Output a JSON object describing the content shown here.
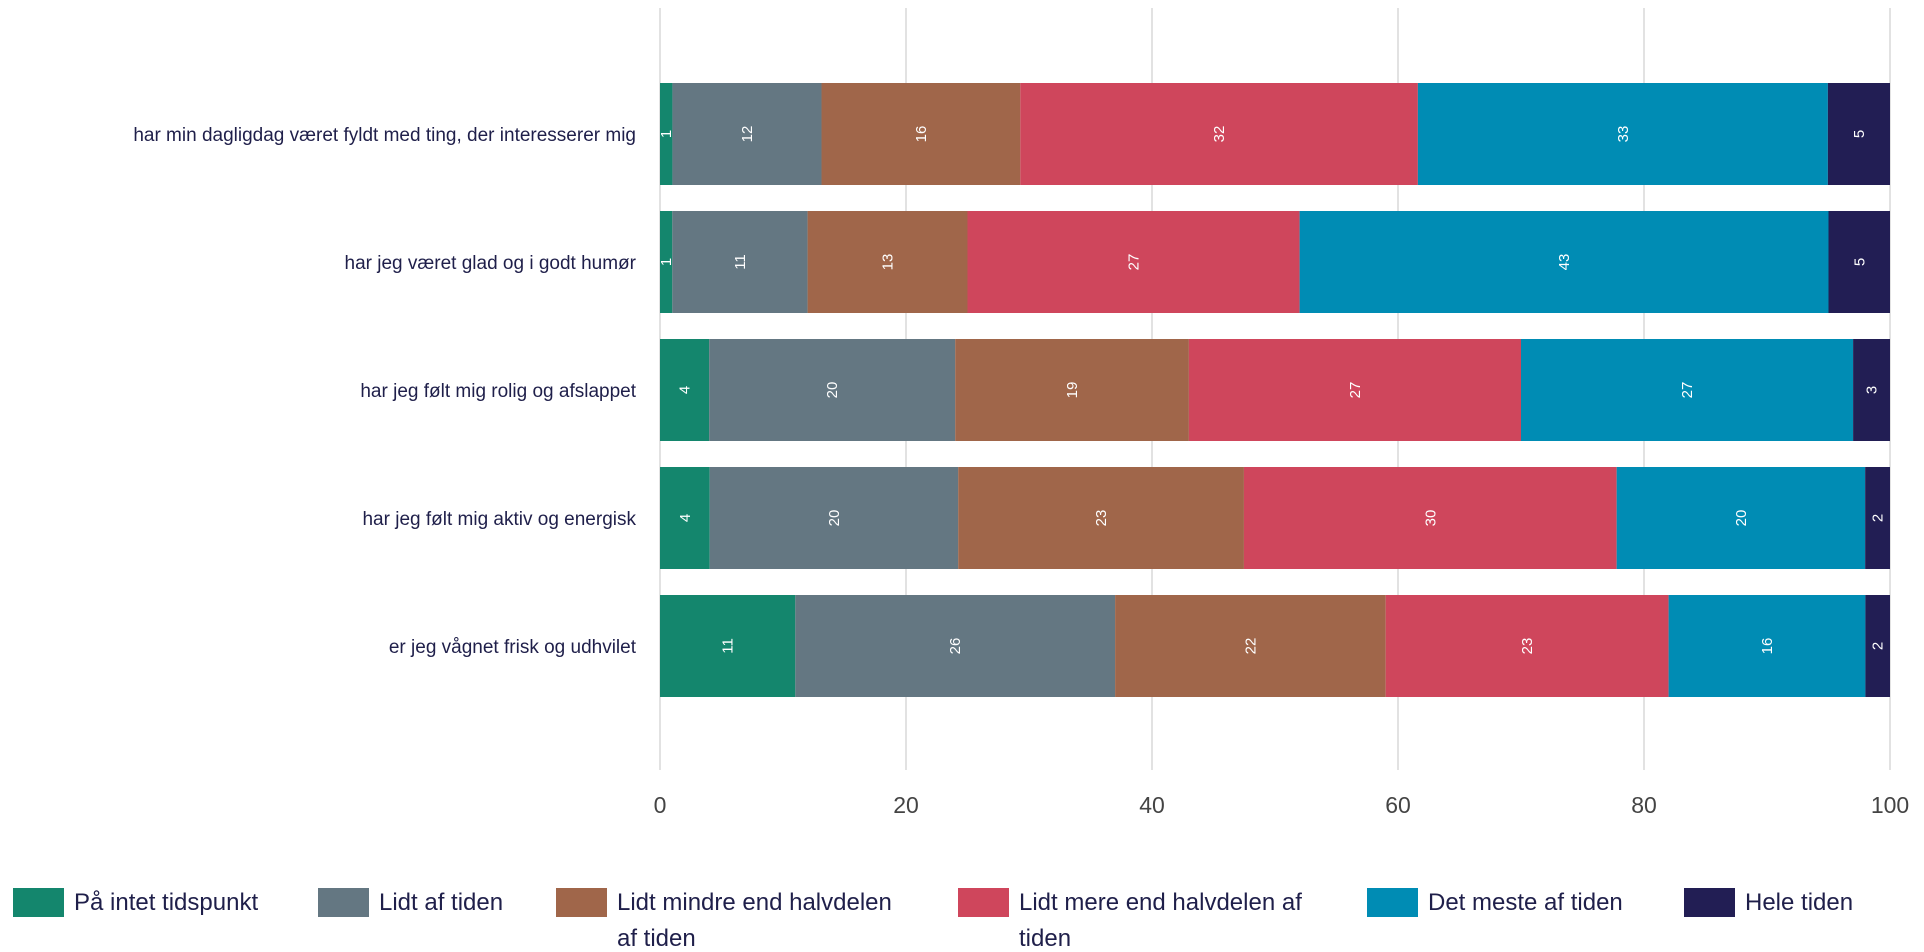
{
  "chart_data": {
    "type": "bar",
    "orientation": "horizontal",
    "stacked": true,
    "categories": [
      "har min dagligdag været fyldt med ting, der interesserer mig",
      "har jeg været glad og i godt humør",
      "har jeg følt mig rolig og afslappet",
      "har jeg følt mig aktiv og energisk",
      "er jeg vågnet frisk og udhvilet"
    ],
    "series": [
      {
        "name": "På intet tidspunkt",
        "color": "#14866d",
        "values": [
          1,
          1,
          4,
          4,
          11
        ]
      },
      {
        "name": "Lidt af tiden",
        "color": "#647782",
        "values": [
          12,
          11,
          20,
          20,
          26
        ]
      },
      {
        "name": "Lidt mindre end halvdelen af tiden",
        "color": "#a0664a",
        "values": [
          16,
          13,
          19,
          23,
          22
        ]
      },
      {
        "name": "Lidt mere end halvdelen af tiden",
        "color": "#cf465c",
        "values": [
          32,
          27,
          27,
          30,
          23
        ]
      },
      {
        "name": "Det meste af tiden",
        "color": "#008cb4",
        "values": [
          33,
          43,
          27,
          20,
          16
        ]
      },
      {
        "name": "Hele tiden",
        "color": "#221e54",
        "values": [
          5,
          5,
          3,
          2,
          2
        ]
      }
    ],
    "xlim": [
      0,
      100
    ],
    "xticks": [
      0,
      20,
      40,
      60,
      80,
      100
    ],
    "grid": true,
    "legend_position": "bottom",
    "data_labels": true
  }
}
